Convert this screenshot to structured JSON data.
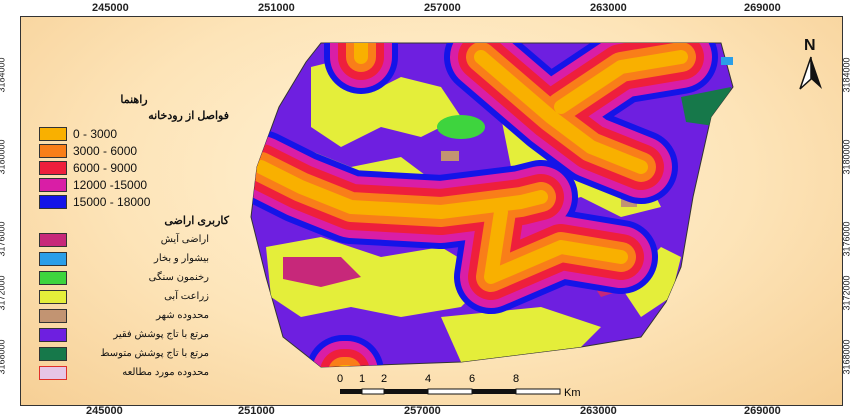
{
  "axes": {
    "x_ticks": [
      "245000",
      "251000",
      "257000",
      "263000",
      "269000"
    ],
    "y_ticks": [
      "3184000",
      "3180000",
      "3176000",
      "3172000",
      "3168000"
    ]
  },
  "legend": {
    "title": "راهنما",
    "distance_title": "فواصل از رودخانه",
    "distance_classes": [
      {
        "label": "0 - 3000",
        "color": "#f9b000"
      },
      {
        "label": "3000 - 6000",
        "color": "#f97e19"
      },
      {
        "label": "6000 - 9000",
        "color": "#ee1f3c"
      },
      {
        "label": "12000 -15000",
        "color": "#d91ea6"
      },
      {
        "label": "15000 - 18000",
        "color": "#1414e8"
      }
    ],
    "landuse_title": "کاربری اراضی",
    "landuse_classes": [
      {
        "label": "اراضی آیش",
        "color": "#c7287a"
      },
      {
        "label": "بیشوار و بخار",
        "color": "#2a9ee8"
      },
      {
        "label": "رخنمون سنگی",
        "color": "#3ed43e"
      },
      {
        "label": "زراعت آبی",
        "color": "#e4ee3a"
      },
      {
        "label": "محدوده شهر",
        "color": "#c29472"
      },
      {
        "label": "مرتع با تاج پوشش فقیر",
        "color": "#6e1fe0"
      },
      {
        "label": "مرتع با تاج پوشش متوسط",
        "color": "#16784a"
      },
      {
        "label": "محدوده مورد مطالعه",
        "color": "#e6c6e6"
      }
    ]
  },
  "north_arrow": {
    "label": "N"
  },
  "scale_bar": {
    "labels": [
      "0",
      "1",
      "2",
      "4",
      "6",
      "8"
    ],
    "unit": "Km"
  }
}
